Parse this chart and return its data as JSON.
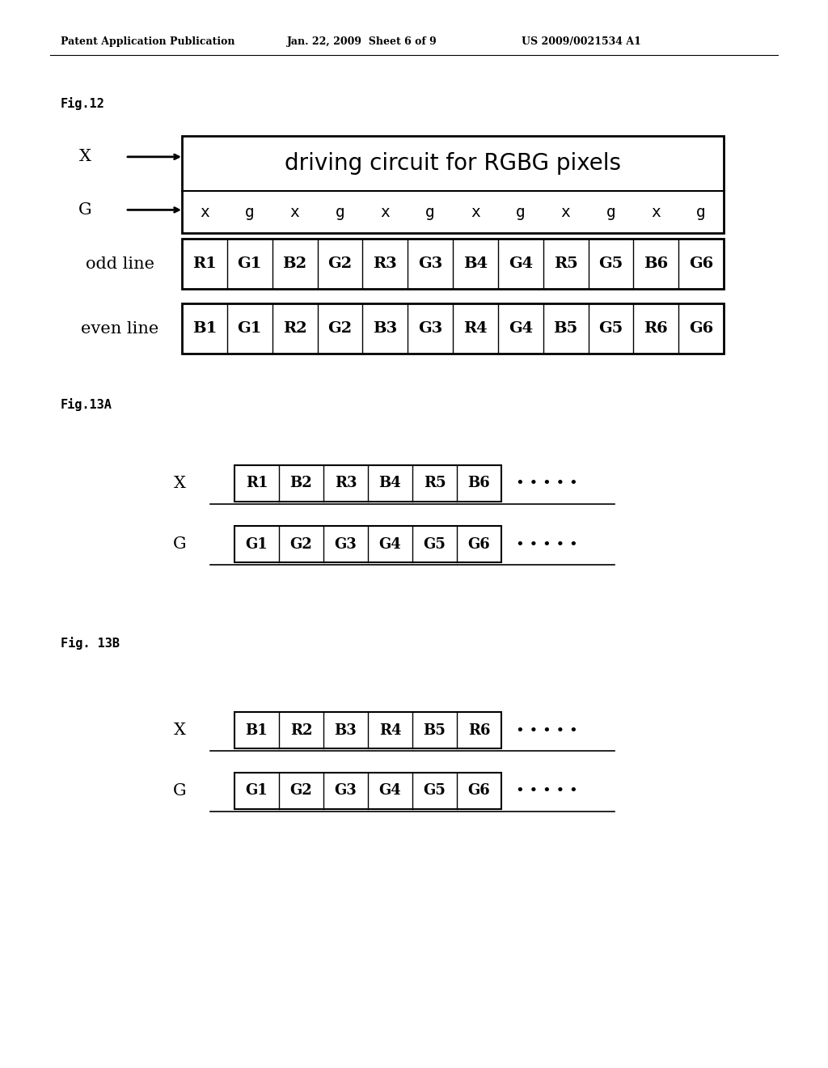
{
  "background_color": "#ffffff",
  "header_left": "Patent Application Publication",
  "header_center": "Jan. 22, 2009  Sheet 6 of 9",
  "header_right": "US 2009/0021534 A1",
  "fig12_label": "Fig.12",
  "fig13a_label": "Fig.13A",
  "fig13b_label": "Fig. 13B",
  "driving_circuit_text": "driving circuit for RGBG pixels",
  "odd_line_cells": [
    "R1",
    "G1",
    "B2",
    "G2",
    "R3",
    "G3",
    "B4",
    "G4",
    "R5",
    "G5",
    "B6",
    "G6"
  ],
  "even_line_cells": [
    "B1",
    "G1",
    "R2",
    "G2",
    "B3",
    "G3",
    "R4",
    "G4",
    "B5",
    "G5",
    "R6",
    "G6"
  ],
  "fig13a_x_cells": [
    "R1",
    "B2",
    "R3",
    "B4",
    "R5",
    "B6"
  ],
  "fig13a_g_cells": [
    "G1",
    "G2",
    "G3",
    "G4",
    "G5",
    "G6"
  ],
  "fig13b_x_cells": [
    "B1",
    "R2",
    "B3",
    "R4",
    "B5",
    "R6"
  ],
  "fig13b_g_cells": [
    "G1",
    "G2",
    "G3",
    "G4",
    "G5",
    "G6"
  ],
  "xg_labels": [
    "x",
    "g",
    "x",
    "g",
    "x",
    "g",
    "x",
    "g",
    "x",
    "g",
    "x",
    "g"
  ]
}
